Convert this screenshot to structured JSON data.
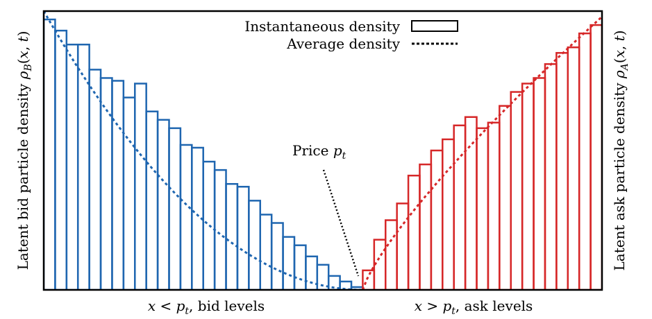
{
  "chart_data": {
    "type": "bar",
    "title": "",
    "xlabel_left": "x < p_t, bid levels",
    "xlabel_right": "x > p_t, ask levels",
    "ylabel_left": "Latent bid particle density ρ_B(x, t)",
    "ylabel_right": "Latent ask particle density ρ_A(x, t)",
    "annotation": "Price p_t",
    "legend": {
      "instantaneous": "Instantaneous density",
      "average": "Average density",
      "placement": "top-center"
    },
    "xlim": [
      -28,
      21
    ],
    "ylim": [
      0,
      1
    ],
    "price": 0,
    "bid": {
      "color": "#1f66b0",
      "x": [
        -28,
        -27,
        -26,
        -25,
        -24,
        -23,
        -22,
        -21,
        -20,
        -19,
        -18,
        -17,
        -16,
        -15,
        -14,
        -13,
        -12,
        -11,
        -10,
        -9,
        -8,
        -7,
        -6,
        -5,
        -4,
        -3,
        -2,
        -1
      ],
      "values": [
        0.97,
        0.93,
        0.88,
        0.88,
        0.79,
        0.76,
        0.75,
        0.69,
        0.74,
        0.64,
        0.61,
        0.58,
        0.52,
        0.51,
        0.46,
        0.43,
        0.38,
        0.37,
        0.32,
        0.27,
        0.24,
        0.19,
        0.16,
        0.12,
        0.09,
        0.05,
        0.03,
        0.01
      ]
    },
    "ask": {
      "color": "#d62728",
      "x": [
        0,
        1,
        2,
        3,
        4,
        5,
        6,
        7,
        8,
        9,
        10,
        11,
        12,
        13,
        14,
        15,
        16,
        17,
        18,
        19,
        20
      ],
      "values": [
        0.07,
        0.18,
        0.25,
        0.31,
        0.41,
        0.45,
        0.5,
        0.54,
        0.59,
        0.62,
        0.58,
        0.6,
        0.66,
        0.71,
        0.74,
        0.76,
        0.81,
        0.85,
        0.87,
        0.92,
        0.95
      ]
    },
    "average_bid": {
      "shape": "quadratic",
      "min_at": 0,
      "value_at_min": 0,
      "value_at_left": 1.0
    },
    "average_ask": {
      "shape": "power",
      "start": 0,
      "exponent": 0.8,
      "value_at_right": 0.98
    }
  }
}
